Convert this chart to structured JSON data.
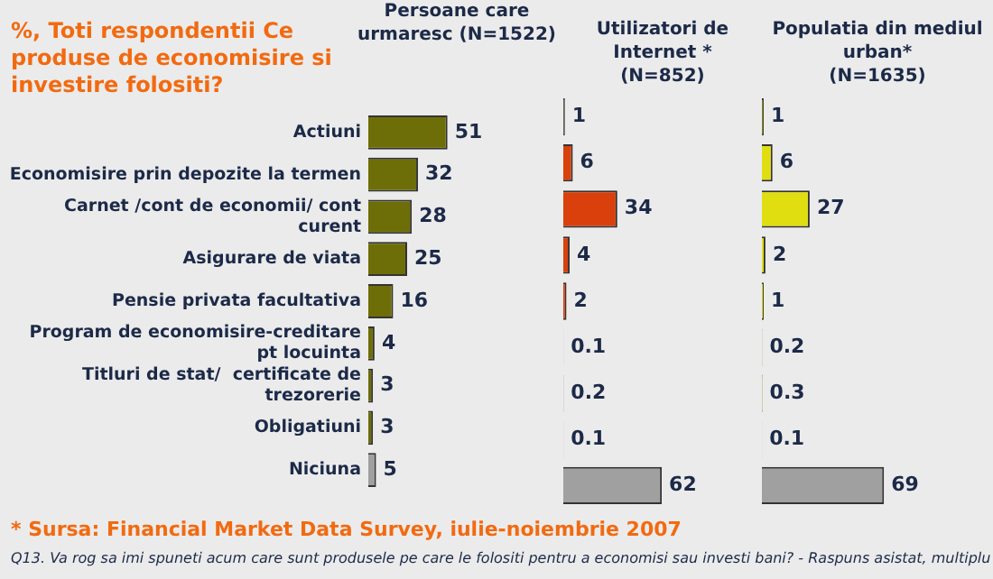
{
  "chart_data": [
    {
      "type": "bar",
      "orientation": "horizontal",
      "title": "%, Toti respondentii Ce produse de economisire si investire folositi?",
      "subtitle": "Persoane care urmaresc (N=1522)",
      "categories": [
        "Actiuni",
        "Economisire prin depozite la termen",
        "Carnet /cont de economii/ cont curent",
        "Asigurare de viata",
        "Pensie privata facultativa",
        "Program de economisire-creditare pt locuinta",
        "Titluri de stat/  certificate de trezorerie",
        "Obligatiuni",
        "Niciuna"
      ],
      "values": [
        51,
        32,
        28,
        25,
        16,
        4,
        3,
        3,
        5
      ],
      "colors": [
        "#6e6e08",
        "#6e6e08",
        "#6e6e08",
        "#6e6e08",
        "#6e6e08",
        "#6e6e08",
        "#6e6e08",
        "#6e6e08",
        "#a0a0a0"
      ],
      "data_labels": true,
      "tick_labels": "y",
      "annotations": [
        "* Sursa: Financial Market Data Survey, iulie-noiembrie 2007",
        "Q13. Va rog sa imi spuneti acum care sunt produsele pe care le folositi pentru a economisi sau investi bani? - Raspuns asistat, multiplu"
      ]
    },
    {
      "type": "bar",
      "orientation": "horizontal",
      "title": "Utilizatori de Internet *",
      "subtitle": "(N=852)",
      "categories": [
        null,
        null,
        null,
        null,
        null,
        null,
        null,
        null,
        null
      ],
      "values": [
        1,
        6,
        34,
        4,
        2,
        0.1,
        0.2,
        0.1,
        62
      ],
      "colors": [
        "#4a4a4a",
        "#d9400c",
        "#d9400c",
        "#d9400c",
        "#d9400c",
        "#d9400c",
        "#d9400c",
        "#d9400c",
        "#a0a0a0"
      ],
      "data_labels": true,
      "tick_labels": false
    },
    {
      "type": "bar",
      "orientation": "horizontal",
      "title": "Populatia din mediul urban*",
      "subtitle": "(N=1635)",
      "categories": [
        null,
        null,
        null,
        null,
        null,
        null,
        null,
        null,
        null
      ],
      "values": [
        1,
        6,
        27,
        2,
        1,
        0.2,
        0.3,
        0.1,
        69
      ],
      "colors": [
        "#8a8a10",
        "#e0de10",
        "#e0de10",
        "#e0de10",
        "#e0de10",
        "#e0de10",
        "#e0de10",
        "#e0de10",
        "#a0a0a0"
      ],
      "data_labels": true,
      "tick_labels": false
    }
  ]
}
